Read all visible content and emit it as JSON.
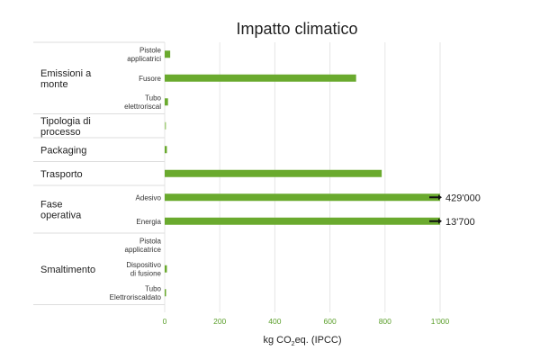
{
  "chart_data": {
    "type": "bar",
    "orientation": "horizontal",
    "title": "Impatto climatico",
    "xlabel_prefix": "kg CO",
    "xlabel_sub": "2",
    "xlabel_suffix": "eq. (IPCC)",
    "xlim": [
      0,
      1000
    ],
    "xticks": [
      0,
      200,
      400,
      600,
      800,
      1000
    ],
    "xtick_labels": [
      "0",
      "200",
      "400",
      "600",
      "800",
      "1'000"
    ],
    "grid": true,
    "bar_color": "#6aaa2e",
    "light_bar_color": "#a6cf7f",
    "groups": [
      {
        "label": "Emissioni a monte",
        "items": [
          {
            "label": "Pistole applicatrici",
            "value": 20
          },
          {
            "label": "Fusore",
            "value": 695
          },
          {
            "label": "Tubo elettroriscal",
            "value": 12
          }
        ]
      },
      {
        "label": "Tipologia di processo",
        "items": [
          {
            "label": "",
            "value": 4,
            "light": true
          }
        ]
      },
      {
        "label": "Packaging",
        "items": [
          {
            "label": "",
            "value": 8
          }
        ]
      },
      {
        "label": "Trasporto",
        "items": [
          {
            "label": "",
            "value": 788
          }
        ]
      },
      {
        "label": "Fase operativa",
        "items": [
          {
            "label": "Adesivo",
            "value": 429000,
            "annotation": "429'000"
          },
          {
            "label": "Energia",
            "value": 13700,
            "annotation": "13'700"
          }
        ]
      },
      {
        "label": "Smaltimento",
        "items": [
          {
            "label": "Pistola applicatrice",
            "value": 0
          },
          {
            "label": "Dispositivo di fusione",
            "value": 8
          },
          {
            "label": "Tubo Elettroriscaldato",
            "value": 2
          }
        ]
      }
    ]
  }
}
